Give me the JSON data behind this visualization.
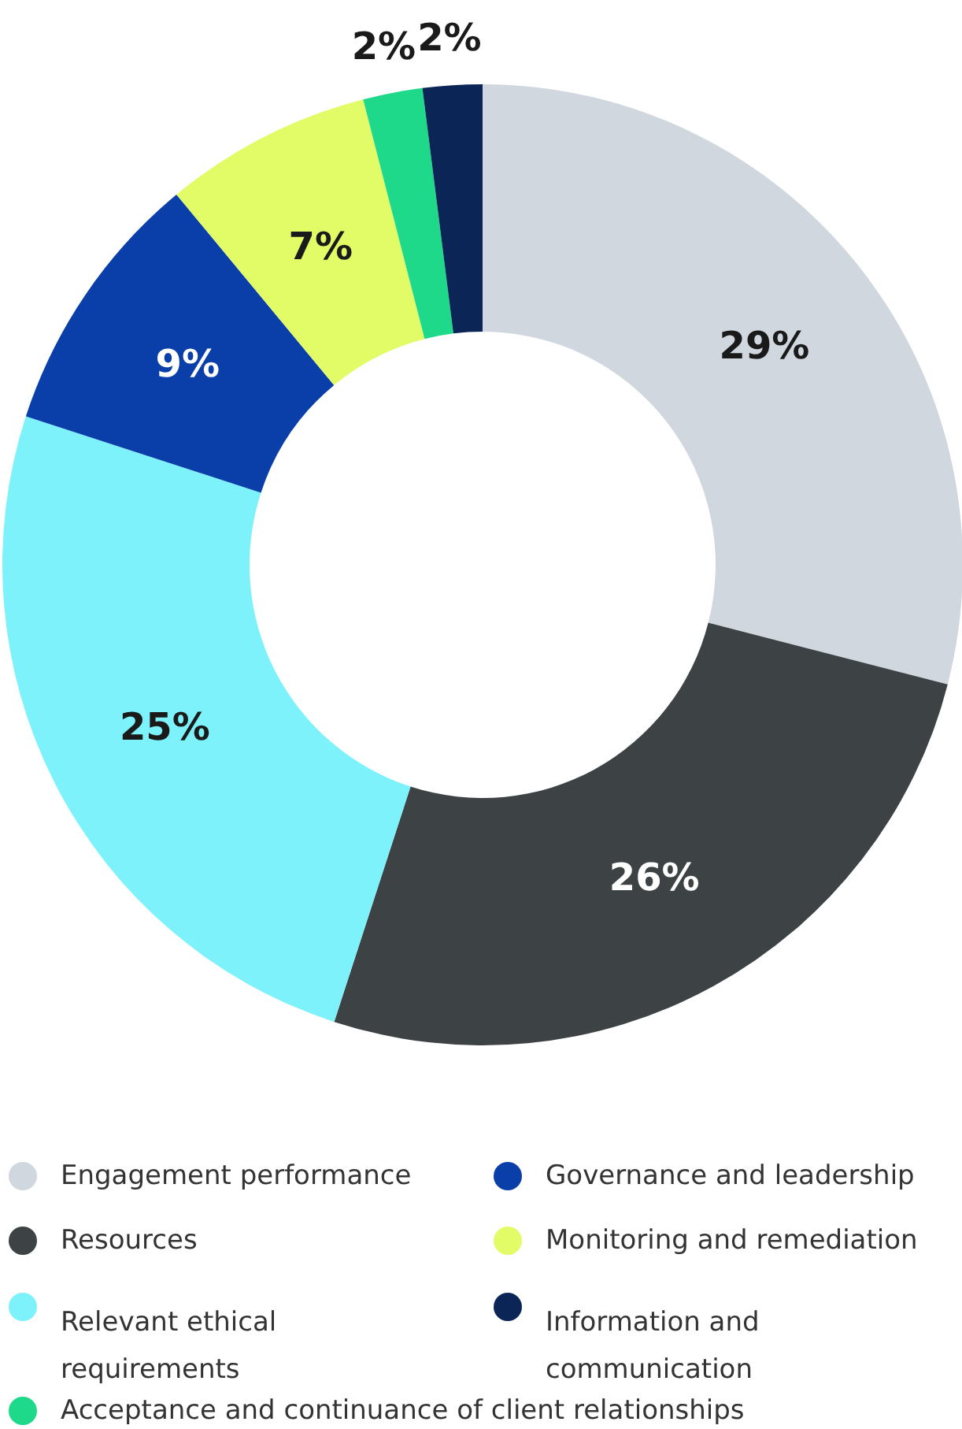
{
  "chart_data": {
    "type": "donut",
    "categories": [
      "Engagement performance",
      "Resources",
      "Relevant ethical requirements",
      "Governance and leadership",
      "Monitoring and remediation",
      "Acceptance and continuance of client relationships",
      "Information and communication"
    ],
    "values": [
      29,
      26,
      25,
      9,
      7,
      2,
      2
    ],
    "value_labels": [
      "29%",
      "26%",
      "25%",
      "9%",
      "7%",
      "2%",
      "2%"
    ],
    "colors": [
      "#d0d7de",
      "#3d4244",
      "#7ef2fb",
      "#0a3ea8",
      "#e2fc68",
      "#1ed98a",
      "#0b2556"
    ],
    "legend": "bottom"
  }
}
